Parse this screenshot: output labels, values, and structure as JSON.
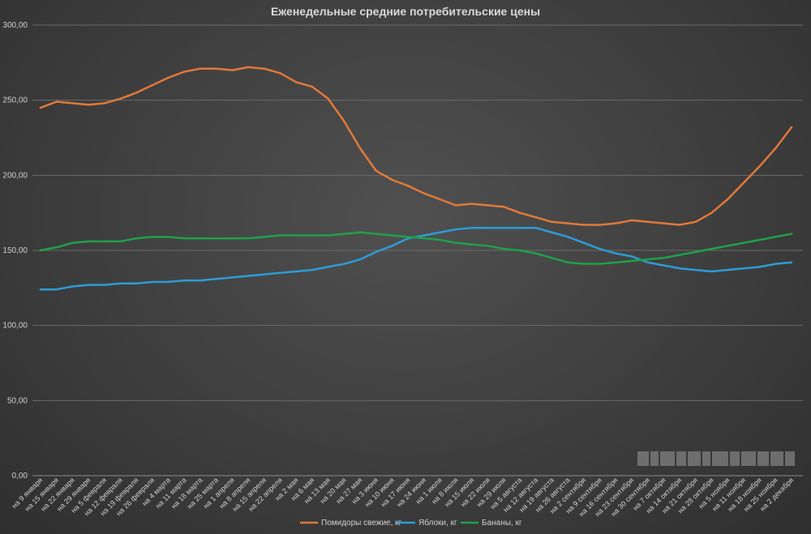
{
  "chart_data": {
    "type": "line",
    "title": "Еженедельные средние потребительские цены",
    "xlabel": "",
    "ylabel": "",
    "ylim": [
      0,
      300
    ],
    "yticks": [
      "0,00",
      "50,00",
      "100,00",
      "150,00",
      "200,00",
      "250,00",
      "300,00"
    ],
    "grid": true,
    "legend_position": "bottom",
    "categories": [
      "на 9 января",
      "на 15 января",
      "на 22 января",
      "на 29 января",
      "на 5 февраля",
      "на 12 февраля",
      "на 19 февраля",
      "на 26 февраля",
      "на 4 марта",
      "на 11 марта",
      "на 18 марта",
      "на 25 марта",
      "на 1 апреля",
      "на 8 апреля",
      "на 15 апреля",
      "на 22 апреля",
      "на 2 мая",
      "на 6 мая",
      "на 13 мая",
      "на 20 мая",
      "на 27 мая",
      "на 3 июня",
      "на 10 июня",
      "на 17 июня",
      "на 24 июня",
      "на 1 июля",
      "на 8 июля",
      "на 15 июля",
      "на 22 июля",
      "на 29 июля",
      "на 5 августа",
      "на 12 августа",
      "на 19 августа",
      "на 26 августа",
      "на 2 сентября",
      "на 9 сентября",
      "на 16 сентября",
      "на 23 сентября",
      "на 30 сентября",
      "на 7 октября",
      "на 14 октября",
      "на 21 октября",
      "на 28 октября",
      "на 5 ноября",
      "на 11 ноября",
      "на 18 ноября",
      "на 25 ноября",
      "на 2 декабря"
    ],
    "series": [
      {
        "name": "Помидоры свежие, кг",
        "color": "#e0793a",
        "values": [
          245,
          249,
          248,
          247,
          248,
          251,
          255,
          260,
          265,
          269,
          271,
          271,
          270,
          272,
          271,
          268,
          262,
          259,
          251,
          236,
          218,
          203,
          197,
          193,
          188,
          184,
          180,
          181,
          180,
          179,
          175,
          172,
          169,
          168,
          167,
          167,
          168,
          170,
          169,
          168,
          167,
          169,
          175,
          184,
          195,
          206,
          218,
          232
        ]
      },
      {
        "name": "Яблоки, кг",
        "color": "#2e9bd6",
        "values": [
          124,
          124,
          126,
          127,
          127,
          128,
          128,
          129,
          129,
          130,
          130,
          131,
          132,
          133,
          134,
          135,
          136,
          137,
          139,
          141,
          144,
          149,
          153,
          158,
          160,
          162,
          164,
          165,
          165,
          165,
          165,
          165,
          162,
          159,
          155,
          151,
          148,
          146,
          142,
          140,
          138,
          137,
          136,
          137,
          138,
          139,
          141,
          142
        ]
      },
      {
        "name": "Бананы, кг",
        "color": "#1fa04b",
        "values": [
          150,
          152,
          155,
          156,
          156,
          156,
          158,
          159,
          159,
          158,
          158,
          158,
          158,
          158,
          159,
          160,
          160,
          160,
          160,
          161,
          162,
          161,
          160,
          159,
          158,
          157,
          155,
          154,
          153,
          151,
          150,
          148,
          145,
          142,
          141,
          141,
          142,
          143,
          144,
          145,
          147,
          149,
          151,
          153,
          155,
          157,
          159,
          161
        ]
      }
    ]
  },
  "watermark": "blurred-watermark"
}
